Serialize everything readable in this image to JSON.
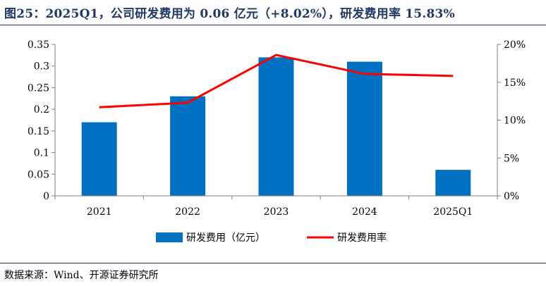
{
  "figure": {
    "title": "图25：2025Q1，公司研发费用为 0.06 亿元（+8.02%），研发费用率 15.83%",
    "source": "数据来源：Wind、开源证券研究所"
  },
  "chart_data": {
    "type": "bar",
    "categories": [
      "2021",
      "2022",
      "2023",
      "2024",
      "2025Q1"
    ],
    "series": [
      {
        "name": "研发费用（亿元）",
        "type": "bar",
        "axis": "left",
        "color": "#0070c0",
        "values": [
          0.17,
          0.23,
          0.32,
          0.31,
          0.06
        ]
      },
      {
        "name": "研发费用率",
        "type": "line",
        "axis": "right",
        "color": "#ff0000",
        "values": [
          11.7,
          12.3,
          18.6,
          16.1,
          15.83
        ]
      }
    ],
    "y_left": {
      "min": 0,
      "max": 0.35,
      "ticks": [
        "0",
        "0.05",
        "0.1",
        "0.15",
        "0.2",
        "0.25",
        "0.3",
        "0.35"
      ]
    },
    "y_right": {
      "min": 0,
      "max": 20,
      "ticks": [
        "0%",
        "5%",
        "10%",
        "15%",
        "20%"
      ]
    },
    "grid": false,
    "legend_position": "bottom"
  }
}
